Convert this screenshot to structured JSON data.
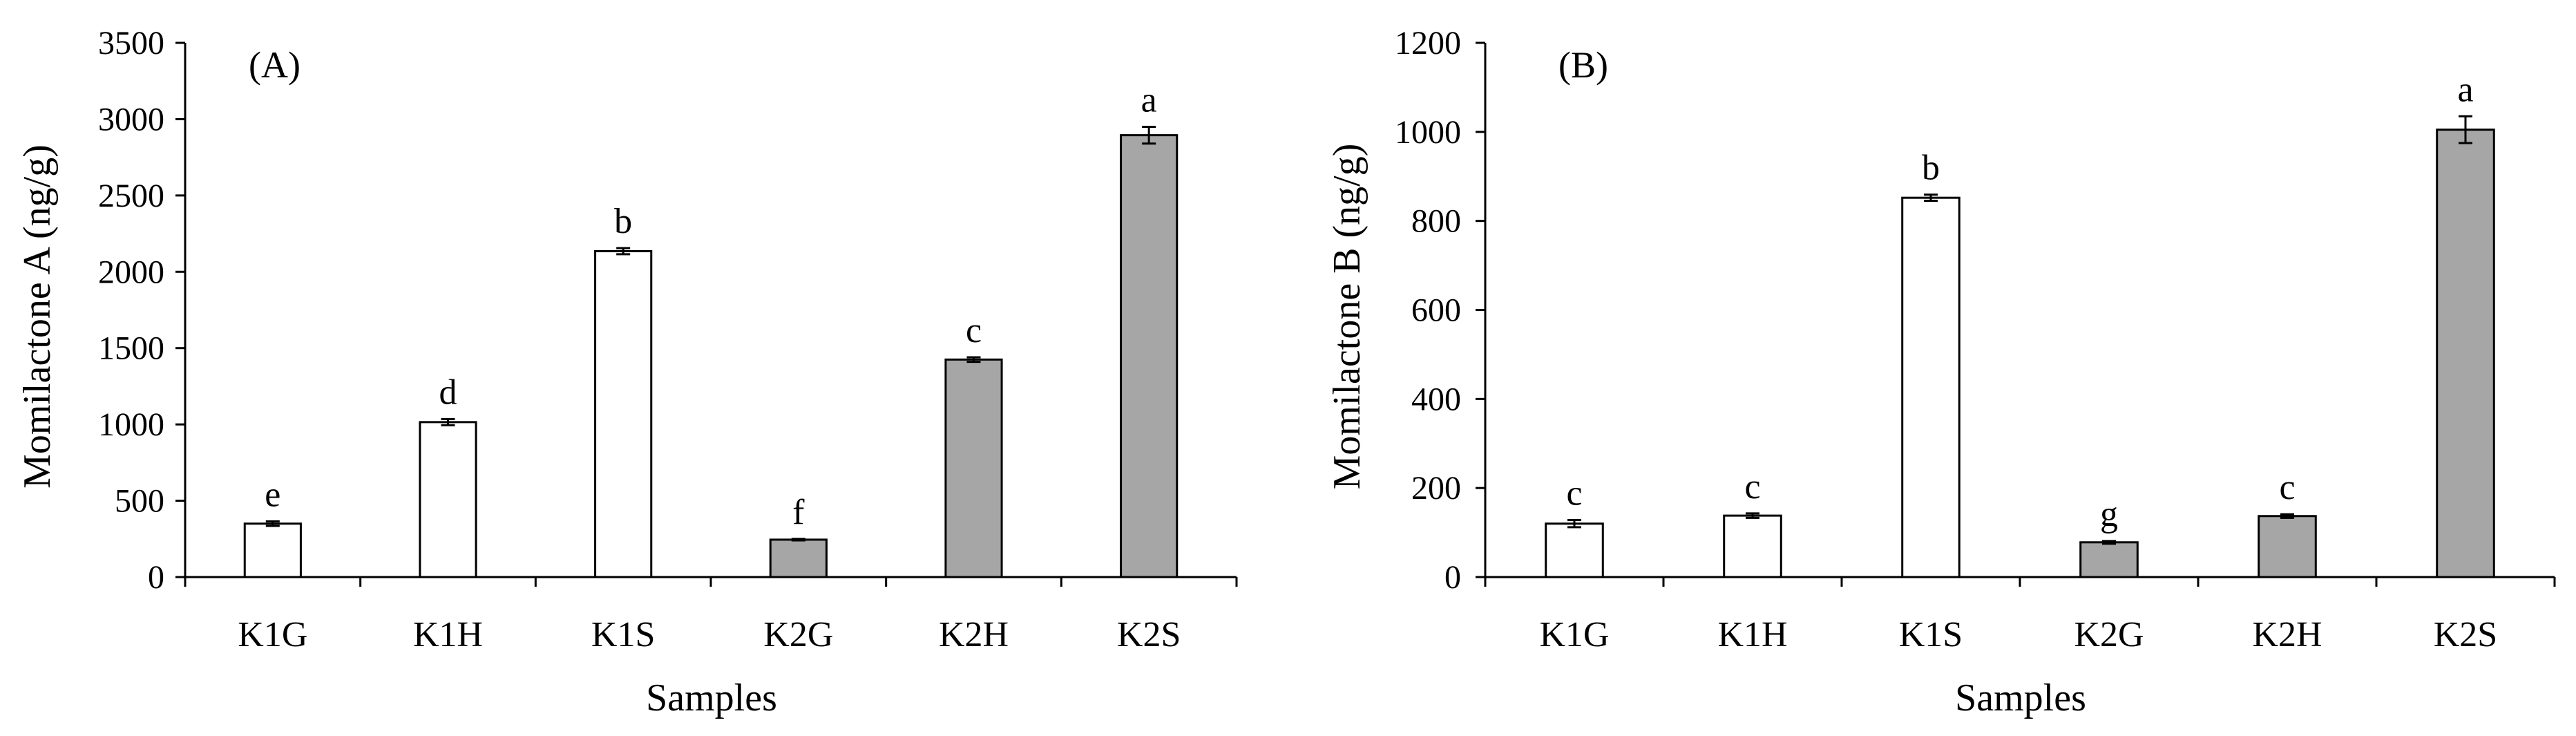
{
  "chart_data": [
    {
      "type": "bar",
      "panel_label": "(A)",
      "xlabel": "Samples",
      "ylabel": "Momilactone A (ng/g)",
      "ylim": [
        0,
        3500
      ],
      "yticks": [
        0,
        500,
        1000,
        1500,
        2000,
        2500,
        3000,
        3500
      ],
      "grid": false,
      "categories": [
        "K1G",
        "K1H",
        "K1S",
        "K2G",
        "K2H",
        "K2S"
      ],
      "values": [
        350,
        1015,
        2135,
        245,
        1425,
        2895
      ],
      "errors": [
        15,
        20,
        20,
        5,
        15,
        55
      ],
      "significance": [
        "e",
        "d",
        "b",
        "f",
        "c",
        "a"
      ],
      "bar_colors": [
        "#ffffff",
        "#ffffff",
        "#ffffff",
        "#a6a6a6",
        "#a6a6a6",
        "#a6a6a6"
      ]
    },
    {
      "type": "bar",
      "panel_label": "(B)",
      "xlabel": "Samples",
      "ylabel": "Momilactone B (ng/g)",
      "ylim": [
        0,
        1200
      ],
      "yticks": [
        0,
        200,
        400,
        600,
        800,
        1000,
        1200
      ],
      "grid": false,
      "categories": [
        "K1G",
        "K1H",
        "K1S",
        "K2G",
        "K2H",
        "K2S"
      ],
      "values": [
        120,
        138,
        852,
        78,
        137,
        1005
      ],
      "errors": [
        8,
        5,
        7,
        3,
        4,
        30
      ],
      "significance": [
        "c",
        "c",
        "b",
        "g",
        "c",
        "a"
      ],
      "bar_colors": [
        "#ffffff",
        "#ffffff",
        "#ffffff",
        "#a6a6a6",
        "#a6a6a6",
        "#a6a6a6"
      ]
    }
  ]
}
